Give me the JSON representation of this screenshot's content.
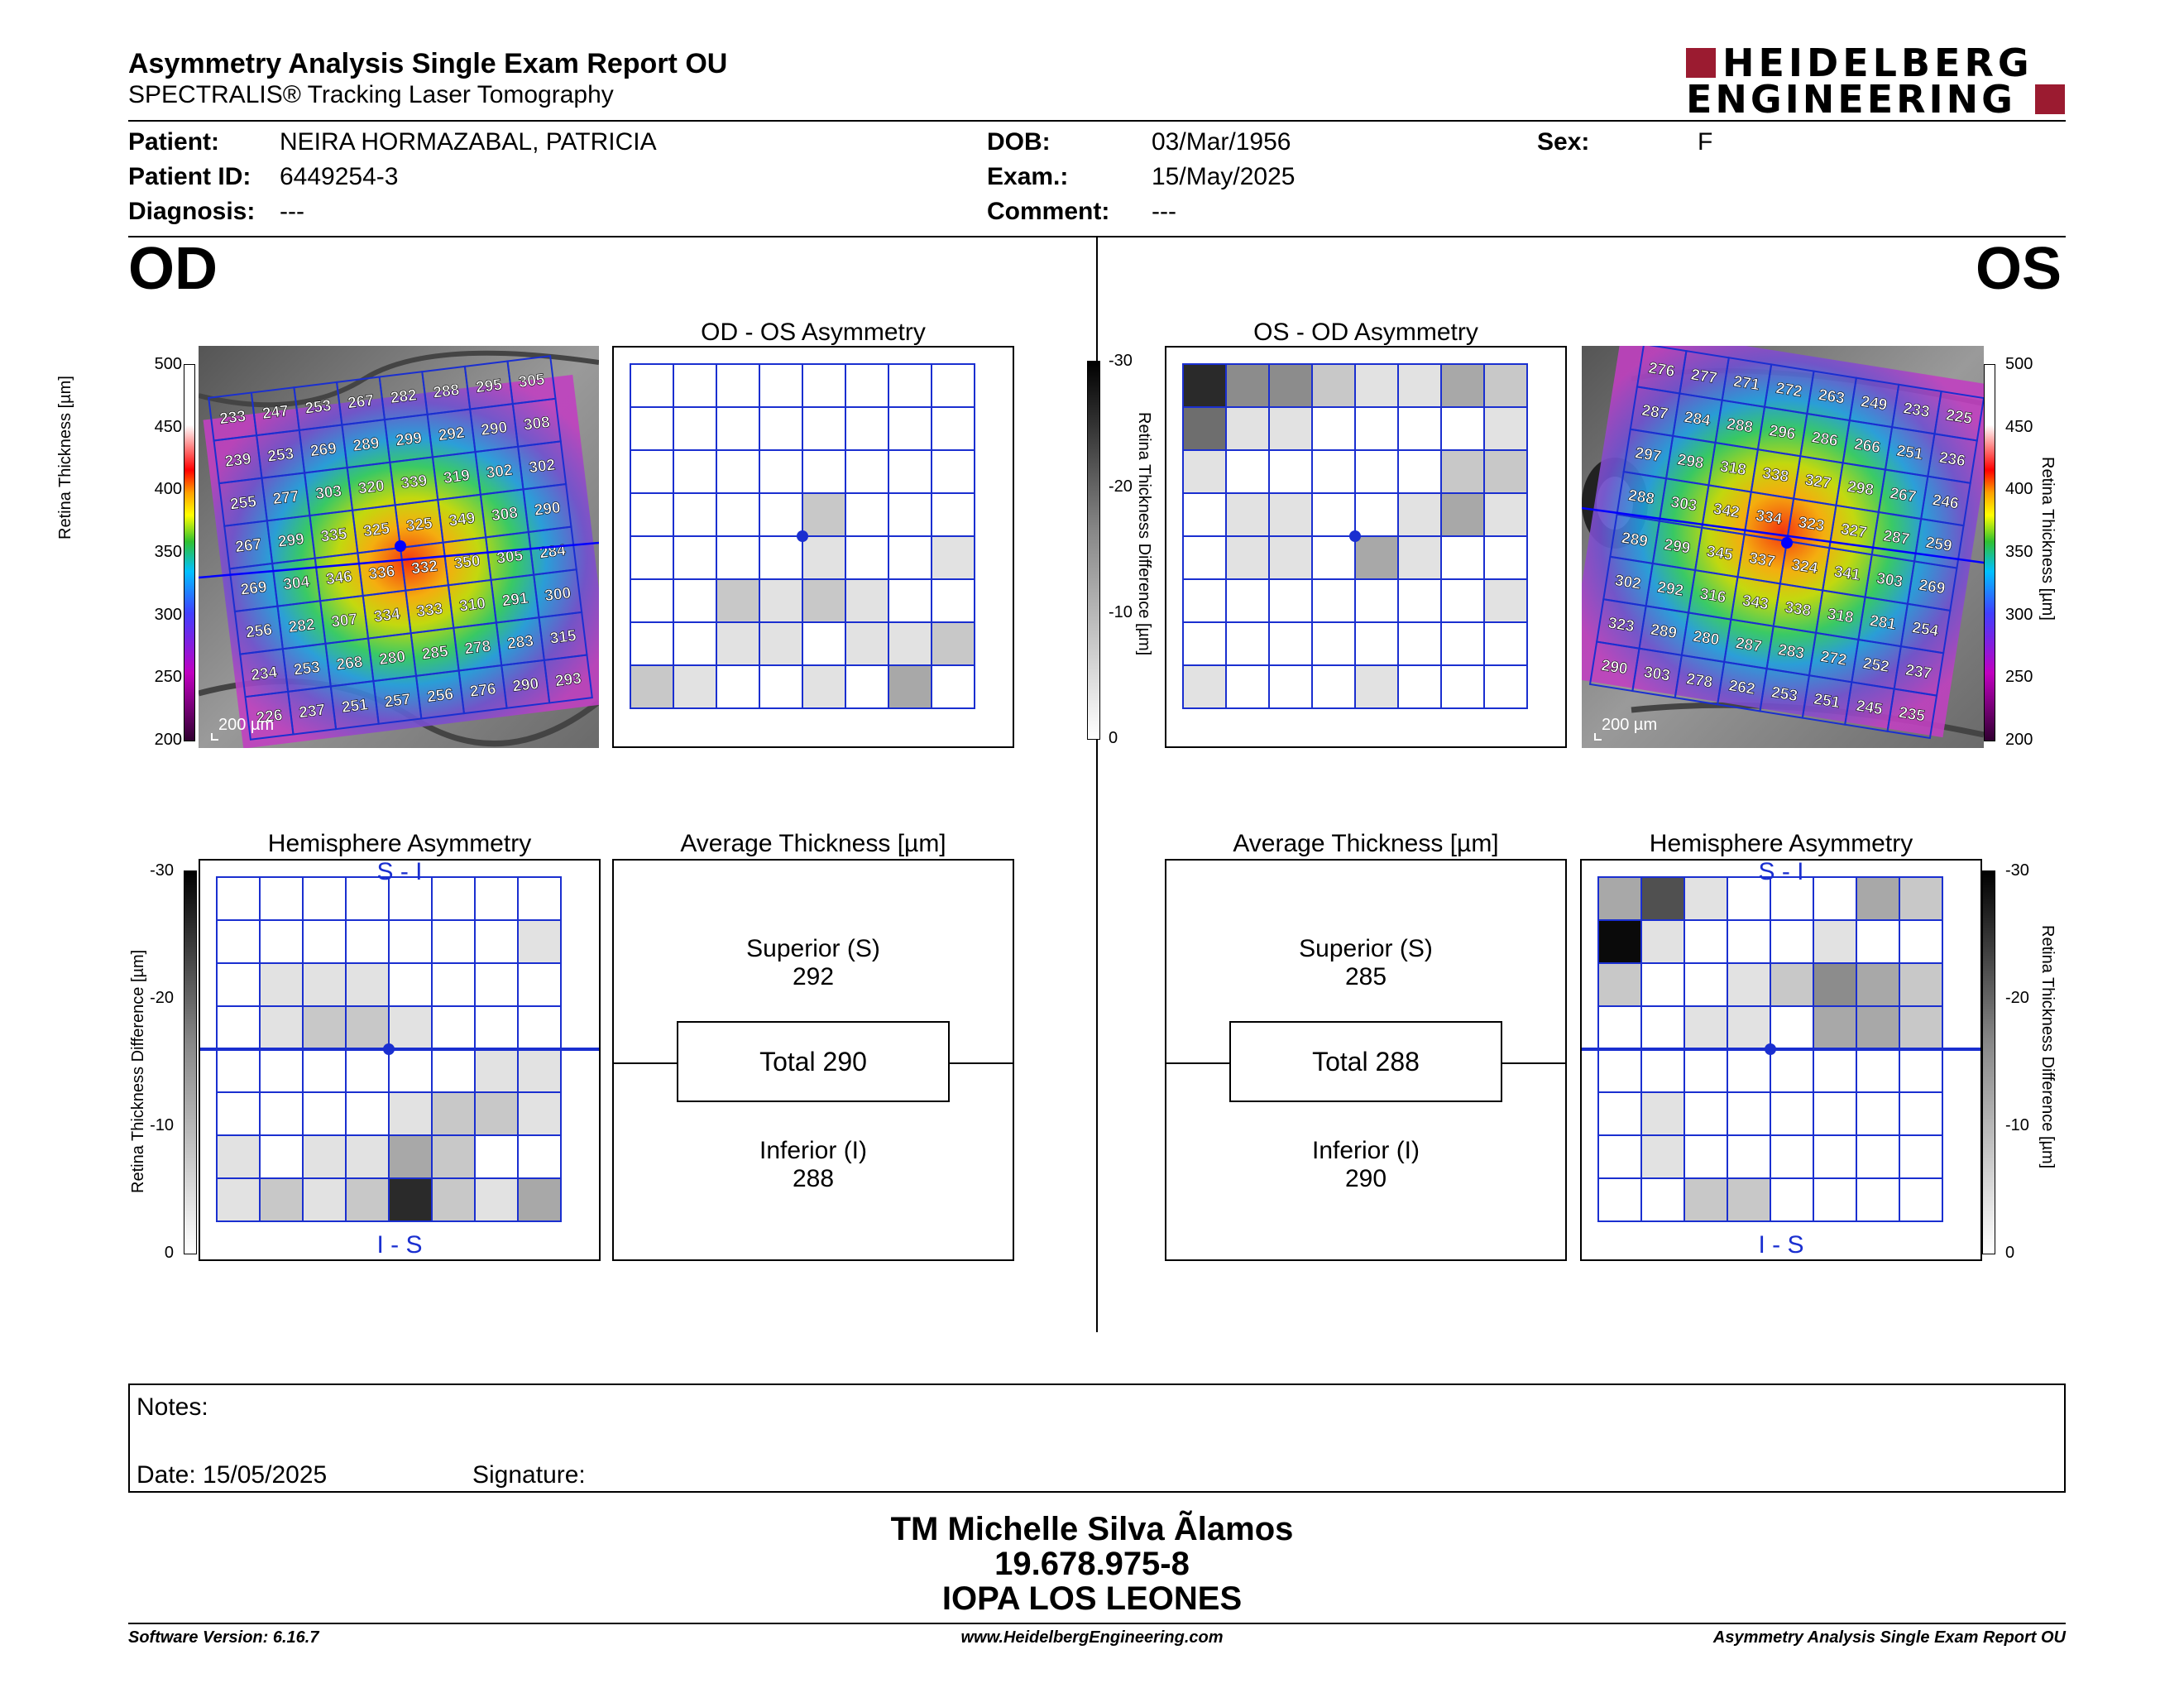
{
  "header": {
    "title": "Asymmetry Analysis Single Exam Report OU",
    "subtitle": "SPECTRALIS® Tracking Laser Tomography",
    "logo_top": "HEIDELBERG",
    "logo_bottom": "ENGINEERING",
    "brand_color": "#9b1b30"
  },
  "patient": {
    "patient_label": "Patient:",
    "patient_value": "NEIRA HORMAZABAL, PATRICIA",
    "id_label": "Patient ID:",
    "id_value": "6449254-3",
    "diag_label": "Diagnosis:",
    "diag_value": "---",
    "dob_label": "DOB:",
    "dob_value": "03/Mar/1956",
    "exam_label": "Exam.:",
    "exam_value": "15/May/2025",
    "comment_label": "Comment:",
    "comment_value": "---",
    "sex_label": "Sex:",
    "sex_value": "F"
  },
  "eyes": {
    "left": "OD",
    "right": "OS"
  },
  "panels": {
    "od_os_title": "OD - OS Asymmetry",
    "os_od_title": "OS - OD Asymmetry",
    "hemi_title": "Hemisphere Asymmetry",
    "avg_title": "Average Thickness [µm]",
    "hemi_top": "S - I",
    "hemi_bottom": "I - S",
    "scale_label": "200 µm"
  },
  "scales": {
    "thickness_label": "Retina Thickness [µm]",
    "thickness_ticks": [
      "500",
      "450",
      "400",
      "350",
      "300",
      "250",
      "200"
    ],
    "diff_label": "Retina Thickness Difference [µm]",
    "diff_ticks": [
      "-30",
      "-20",
      "-10",
      "0"
    ]
  },
  "od": {
    "thickness_grid": [
      [
        233,
        247,
        253,
        267,
        282,
        288,
        295,
        305
      ],
      [
        239,
        253,
        269,
        289,
        299,
        292,
        290,
        308
      ],
      [
        255,
        277,
        303,
        320,
        339,
        319,
        302,
        302
      ],
      [
        267,
        299,
        335,
        325,
        325,
        349,
        308,
        290
      ],
      [
        269,
        304,
        346,
        336,
        332,
        350,
        305,
        284
      ],
      [
        256,
        282,
        307,
        334,
        333,
        310,
        291,
        300
      ],
      [
        234,
        253,
        268,
        280,
        285,
        278,
        283,
        315
      ],
      [
        226,
        237,
        251,
        257,
        256,
        276,
        290,
        293
      ]
    ],
    "asym_grid": [
      [
        0,
        0,
        0,
        0,
        0,
        0,
        0,
        0
      ],
      [
        0,
        0,
        0,
        0,
        0,
        0,
        0,
        0
      ],
      [
        0,
        0,
        0,
        0,
        0,
        0,
        0,
        0
      ],
      [
        0,
        0,
        0,
        0,
        2,
        0,
        0,
        0
      ],
      [
        0,
        0,
        0,
        0,
        1,
        0,
        0,
        1
      ],
      [
        0,
        0,
        2,
        1,
        2,
        1,
        0,
        0
      ],
      [
        0,
        0,
        1,
        1,
        0,
        1,
        1,
        2
      ],
      [
        2,
        1,
        0,
        0,
        1,
        0,
        3,
        0
      ]
    ],
    "hemi_grid": [
      [
        0,
        0,
        0,
        0,
        0,
        0,
        0,
        0
      ],
      [
        0,
        0,
        0,
        0,
        0,
        0,
        0,
        1
      ],
      [
        0,
        1,
        1,
        1,
        0,
        0,
        0,
        0
      ],
      [
        0,
        1,
        2,
        2,
        1,
        0,
        0,
        0
      ],
      [
        0,
        0,
        0,
        0,
        0,
        0,
        1,
        1
      ],
      [
        0,
        0,
        0,
        0,
        1,
        2,
        2,
        1
      ],
      [
        1,
        0,
        1,
        1,
        3,
        2,
        0,
        0
      ],
      [
        1,
        2,
        1,
        2,
        7,
        2,
        1,
        3
      ]
    ],
    "avg": {
      "superior_label": "Superior (S)",
      "superior": "292",
      "total": "Total 290",
      "inferior_label": "Inferior (I)",
      "inferior": "288"
    }
  },
  "os": {
    "thickness_grid": [
      [
        276,
        277,
        271,
        272,
        263,
        249,
        233,
        225
      ],
      [
        287,
        284,
        288,
        296,
        286,
        266,
        251,
        236
      ],
      [
        297,
        298,
        318,
        338,
        327,
        298,
        267,
        246
      ],
      [
        288,
        303,
        342,
        334,
        323,
        327,
        287,
        259
      ],
      [
        289,
        299,
        345,
        337,
        324,
        341,
        303,
        269
      ],
      [
        302,
        292,
        316,
        343,
        338,
        318,
        281,
        254
      ],
      [
        323,
        289,
        280,
        287,
        283,
        272,
        252,
        237
      ],
      [
        290,
        303,
        278,
        262,
        253,
        251,
        245,
        235
      ]
    ],
    "asym_grid": [
      [
        7,
        4,
        4,
        2,
        1,
        1,
        3,
        2
      ],
      [
        5,
        1,
        1,
        0,
        0,
        0,
        0,
        1
      ],
      [
        1,
        0,
        0,
        0,
        0,
        0,
        2,
        2
      ],
      [
        0,
        1,
        1,
        0,
        0,
        1,
        3,
        1
      ],
      [
        0,
        1,
        1,
        0,
        3,
        1,
        0,
        0
      ],
      [
        0,
        0,
        0,
        0,
        0,
        0,
        0,
        1
      ],
      [
        0,
        0,
        0,
        0,
        0,
        0,
        0,
        0
      ],
      [
        1,
        0,
        0,
        0,
        1,
        0,
        0,
        0
      ]
    ],
    "hemi_grid": [
      [
        3,
        6,
        1,
        0,
        0,
        0,
        3,
        2
      ],
      [
        8,
        1,
        0,
        0,
        0,
        1,
        0,
        0
      ],
      [
        2,
        0,
        0,
        1,
        2,
        4,
        3,
        2
      ],
      [
        0,
        0,
        1,
        1,
        0,
        3,
        3,
        2
      ],
      [
        0,
        0,
        0,
        0,
        0,
        0,
        0,
        0
      ],
      [
        0,
        1,
        0,
        0,
        0,
        0,
        0,
        0
      ],
      [
        0,
        1,
        0,
        0,
        0,
        0,
        0,
        0
      ],
      [
        0,
        0,
        2,
        2,
        0,
        0,
        0,
        0
      ]
    ],
    "avg": {
      "superior_label": "Superior (S)",
      "superior": "285",
      "total": "Total 288",
      "inferior_label": "Inferior (I)",
      "inferior": "290"
    }
  },
  "notes": {
    "notes_label": "Notes:",
    "date_label": "Date: 15/05/2025",
    "signature_label": "Signature:"
  },
  "signer": {
    "name": "TM Michelle Silva Ãlamos",
    "rut": "19.678.975-8",
    "place": "IOPA LOS LEONES"
  },
  "footer": {
    "software": "Software Version: 6.16.7",
    "url": "www.HeidelbergEngineering.com",
    "report": "Asymmetry Analysis Single Exam Report OU"
  }
}
